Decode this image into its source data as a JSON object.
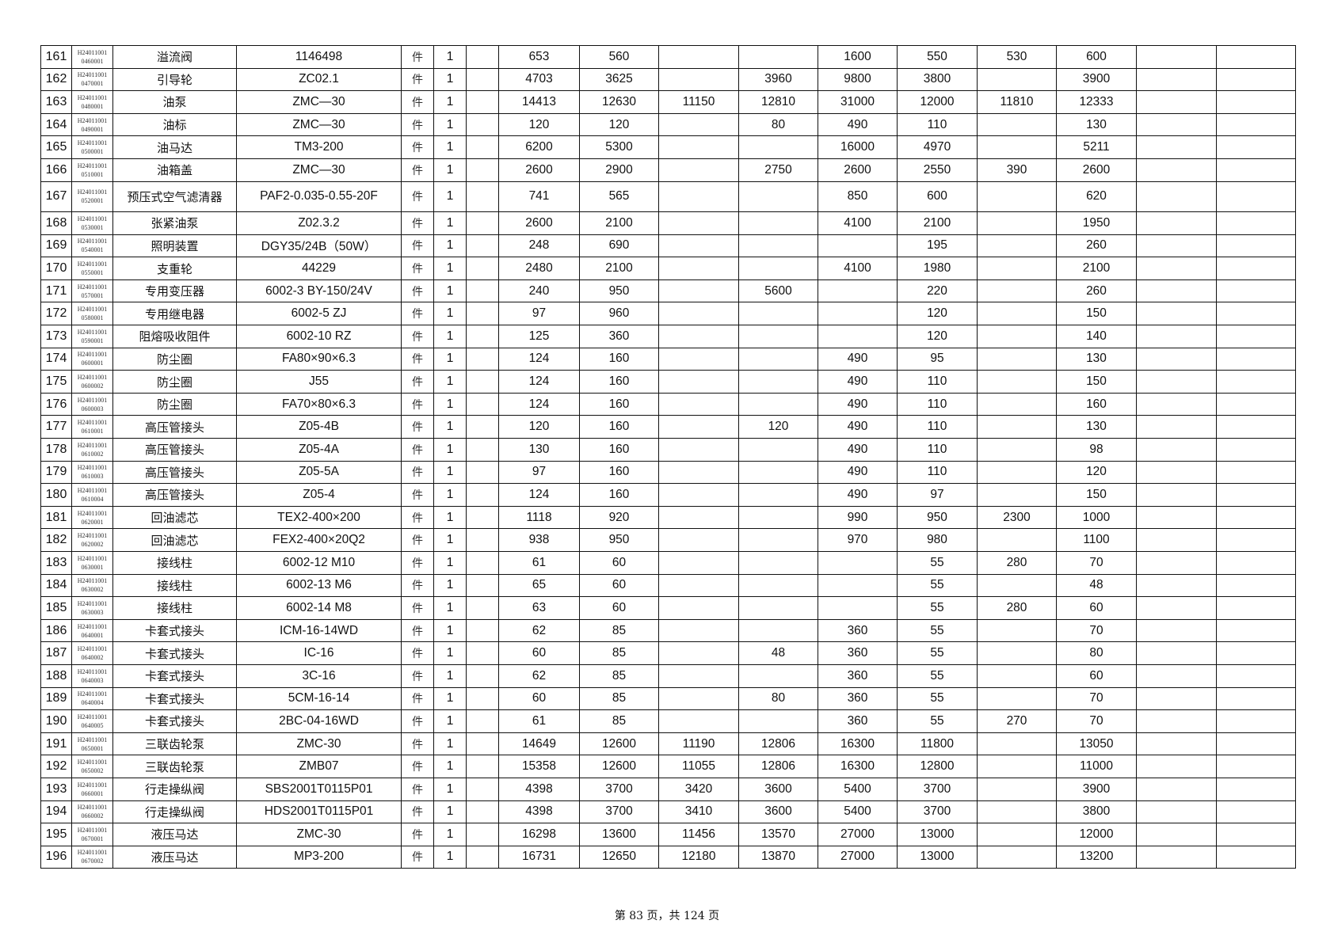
{
  "table": {
    "rows": [
      {
        "no": "161",
        "code": [
          "H24011001",
          "0460001"
        ],
        "name": "溢流阀",
        "model": "1146498",
        "unit": "件",
        "qty": "1",
        "prices": [
          "653",
          "560",
          "",
          "",
          "1600",
          "550",
          "530",
          "600"
        ]
      },
      {
        "no": "162",
        "code": [
          "H24011001",
          "0470001"
        ],
        "name": "引导轮",
        "model": "ZC02.1",
        "unit": "件",
        "qty": "1",
        "prices": [
          "4703",
          "3625",
          "",
          "3960",
          "9800",
          "3800",
          "",
          "3900"
        ]
      },
      {
        "no": "163",
        "code": [
          "H24011001",
          "0480001"
        ],
        "name": "油泵",
        "model": "ZMC—30",
        "unit": "件",
        "qty": "1",
        "prices": [
          "14413",
          "12630",
          "11150",
          "12810",
          "31000",
          "12000",
          "11810",
          "12333"
        ]
      },
      {
        "no": "164",
        "code": [
          "H24011001",
          "0490001"
        ],
        "name": "油标",
        "model": "ZMC—30",
        "unit": "件",
        "qty": "1",
        "prices": [
          "120",
          "120",
          "",
          "80",
          "490",
          "110",
          "",
          "130"
        ]
      },
      {
        "no": "165",
        "code": [
          "H24011001",
          "0500001"
        ],
        "name": "油马达",
        "model": "TM3-200",
        "unit": "件",
        "qty": "1",
        "prices": [
          "6200",
          "5300",
          "",
          "",
          "16000",
          "4970",
          "",
          "5211"
        ]
      },
      {
        "no": "166",
        "code": [
          "H24011001",
          "0510001"
        ],
        "name": "油箱盖",
        "model": "ZMC—30",
        "unit": "件",
        "qty": "1",
        "prices": [
          "2600",
          "2900",
          "",
          "2750",
          "2600",
          "2550",
          "390",
          "2600"
        ]
      },
      {
        "no": "167",
        "code": [
          "H24011001",
          "0520001"
        ],
        "name": "预压式空气滤清器",
        "model": "PAF2-0.035-0.55-20F",
        "unit": "件",
        "qty": "1",
        "prices": [
          "741",
          "565",
          "",
          "",
          "850",
          "600",
          "",
          "620"
        ],
        "tall": true
      },
      {
        "no": "168",
        "code": [
          "H24011001",
          "0530001"
        ],
        "name": "张紧油泵",
        "model": "Z02.3.2",
        "unit": "件",
        "qty": "1",
        "prices": [
          "2600",
          "2100",
          "",
          "",
          "4100",
          "2100",
          "",
          "1950"
        ]
      },
      {
        "no": "169",
        "code": [
          "H24011001",
          "0540001"
        ],
        "name": "照明装置",
        "model": "DGY35/24B（50W）",
        "unit": "件",
        "qty": "1",
        "prices": [
          "248",
          "690",
          "",
          "",
          "",
          "195",
          "",
          "260"
        ]
      },
      {
        "no": "170",
        "code": [
          "H24011001",
          "0550001"
        ],
        "name": "支重轮",
        "model": "44229",
        "unit": "件",
        "qty": "1",
        "prices": [
          "2480",
          "2100",
          "",
          "",
          "4100",
          "1980",
          "",
          "2100"
        ]
      },
      {
        "no": "171",
        "code": [
          "H24011001",
          "0570001"
        ],
        "name": "专用变压器",
        "model": "6002-3 BY-150/24V",
        "unit": "件",
        "qty": "1",
        "prices": [
          "240",
          "950",
          "",
          "5600",
          "",
          "220",
          "",
          "260"
        ]
      },
      {
        "no": "172",
        "code": [
          "H24011001",
          "0580001"
        ],
        "name": "专用继电器",
        "model": "6002-5 ZJ",
        "unit": "件",
        "qty": "1",
        "prices": [
          "97",
          "960",
          "",
          "",
          "",
          "120",
          "",
          "150"
        ]
      },
      {
        "no": "173",
        "code": [
          "H24011001",
          "0590001"
        ],
        "name": "阻熔吸收阻件",
        "model": "6002-10 RZ",
        "unit": "件",
        "qty": "1",
        "prices": [
          "125",
          "360",
          "",
          "",
          "",
          "120",
          "",
          "140"
        ]
      },
      {
        "no": "174",
        "code": [
          "H24011001",
          "0600001"
        ],
        "name": "防尘圈",
        "model": "FA80×90×6.3",
        "unit": "件",
        "qty": "1",
        "prices": [
          "124",
          "160",
          "",
          "",
          "490",
          "95",
          "",
          "130"
        ]
      },
      {
        "no": "175",
        "code": [
          "H24011001",
          "0600002"
        ],
        "name": "防尘圈",
        "model": "J55",
        "unit": "件",
        "qty": "1",
        "prices": [
          "124",
          "160",
          "",
          "",
          "490",
          "110",
          "",
          "150"
        ]
      },
      {
        "no": "176",
        "code": [
          "H24011001",
          "0600003"
        ],
        "name": "防尘圈",
        "model": "FA70×80×6.3",
        "unit": "件",
        "qty": "1",
        "prices": [
          "124",
          "160",
          "",
          "",
          "490",
          "110",
          "",
          "160"
        ]
      },
      {
        "no": "177",
        "code": [
          "H24011001",
          "0610001"
        ],
        "name": "高压管接头",
        "model": "Z05-4B",
        "unit": "件",
        "qty": "1",
        "prices": [
          "120",
          "160",
          "",
          "120",
          "490",
          "110",
          "",
          "130"
        ]
      },
      {
        "no": "178",
        "code": [
          "H24011001",
          "0610002"
        ],
        "name": "高压管接头",
        "model": "Z05-4A",
        "unit": "件",
        "qty": "1",
        "prices": [
          "130",
          "160",
          "",
          "",
          "490",
          "110",
          "",
          "98"
        ]
      },
      {
        "no": "179",
        "code": [
          "H24011001",
          "0610003"
        ],
        "name": "高压管接头",
        "model": "Z05-5A",
        "unit": "件",
        "qty": "1",
        "prices": [
          "97",
          "160",
          "",
          "",
          "490",
          "110",
          "",
          "120"
        ]
      },
      {
        "no": "180",
        "code": [
          "H24011001",
          "0610004"
        ],
        "name": "高压管接头",
        "model": "Z05-4",
        "unit": "件",
        "qty": "1",
        "prices": [
          "124",
          "160",
          "",
          "",
          "490",
          "97",
          "",
          "150"
        ]
      },
      {
        "no": "181",
        "code": [
          "H24011001",
          "0620001"
        ],
        "name": "回油滤芯",
        "model": "TEX2-400×200",
        "unit": "件",
        "qty": "1",
        "prices": [
          "1118",
          "920",
          "",
          "",
          "990",
          "950",
          "2300",
          "1000"
        ]
      },
      {
        "no": "182",
        "code": [
          "H24011001",
          "0620002"
        ],
        "name": "回油滤芯",
        "model": "FEX2-400×20Q2",
        "unit": "件",
        "qty": "1",
        "prices": [
          "938",
          "950",
          "",
          "",
          "970",
          "980",
          "",
          "1100"
        ]
      },
      {
        "no": "183",
        "code": [
          "H24011001",
          "0630001"
        ],
        "name": "接线柱",
        "model": "6002-12 M10",
        "unit": "件",
        "qty": "1",
        "prices": [
          "61",
          "60",
          "",
          "",
          "",
          "55",
          "280",
          "70"
        ]
      },
      {
        "no": "184",
        "code": [
          "H24011001",
          "0630002"
        ],
        "name": "接线柱",
        "model": "6002-13 M6",
        "unit": "件",
        "qty": "1",
        "prices": [
          "65",
          "60",
          "",
          "",
          "",
          "55",
          "",
          "48"
        ]
      },
      {
        "no": "185",
        "code": [
          "H24011001",
          "0630003"
        ],
        "name": "接线柱",
        "model": "6002-14 M8",
        "unit": "件",
        "qty": "1",
        "prices": [
          "63",
          "60",
          "",
          "",
          "",
          "55",
          "280",
          "60"
        ]
      },
      {
        "no": "186",
        "code": [
          "H24011001",
          "0640001"
        ],
        "name": "卡套式接头",
        "model": "ICM-16-14WD",
        "unit": "件",
        "qty": "1",
        "prices": [
          "62",
          "85",
          "",
          "",
          "360",
          "55",
          "",
          "70"
        ]
      },
      {
        "no": "187",
        "code": [
          "H24011001",
          "0640002"
        ],
        "name": "卡套式接头",
        "model": "IC-16",
        "unit": "件",
        "qty": "1",
        "prices": [
          "60",
          "85",
          "",
          "48",
          "360",
          "55",
          "",
          "80"
        ]
      },
      {
        "no": "188",
        "code": [
          "H24011001",
          "0640003"
        ],
        "name": "卡套式接头",
        "model": "3C-16",
        "unit": "件",
        "qty": "1",
        "prices": [
          "62",
          "85",
          "",
          "",
          "360",
          "55",
          "",
          "60"
        ]
      },
      {
        "no": "189",
        "code": [
          "H24011001",
          "0640004"
        ],
        "name": "卡套式接头",
        "model": "5CM-16-14",
        "unit": "件",
        "qty": "1",
        "prices": [
          "60",
          "85",
          "",
          "80",
          "360",
          "55",
          "",
          "70"
        ]
      },
      {
        "no": "190",
        "code": [
          "H24011001",
          "0640005"
        ],
        "name": "卡套式接头",
        "model": "2BC-04-16WD",
        "unit": "件",
        "qty": "1",
        "prices": [
          "61",
          "85",
          "",
          "",
          "360",
          "55",
          "270",
          "70"
        ]
      },
      {
        "no": "191",
        "code": [
          "H24011001",
          "0650001"
        ],
        "name": "三联齿轮泵",
        "model": "ZMC-30",
        "unit": "件",
        "qty": "1",
        "prices": [
          "14649",
          "12600",
          "11190",
          "12806",
          "16300",
          "11800",
          "",
          "13050"
        ]
      },
      {
        "no": "192",
        "code": [
          "H24011001",
          "0650002"
        ],
        "name": "三联齿轮泵",
        "model": "ZMB07",
        "unit": "件",
        "qty": "1",
        "prices": [
          "15358",
          "12600",
          "11055",
          "12806",
          "16300",
          "12800",
          "",
          "11000"
        ]
      },
      {
        "no": "193",
        "code": [
          "H24011001",
          "0660001"
        ],
        "name": "行走操纵阀",
        "model": "SBS2001T0115P01",
        "unit": "件",
        "qty": "1",
        "prices": [
          "4398",
          "3700",
          "3420",
          "3600",
          "5400",
          "3700",
          "",
          "3900"
        ]
      },
      {
        "no": "194",
        "code": [
          "H24011001",
          "0660002"
        ],
        "name": "行走操纵阀",
        "model": "HDS2001T0115P01",
        "unit": "件",
        "qty": "1",
        "prices": [
          "4398",
          "3700",
          "3410",
          "3600",
          "5400",
          "3700",
          "",
          "3800"
        ]
      },
      {
        "no": "195",
        "code": [
          "H24011001",
          "0670001"
        ],
        "name": "液压马达",
        "model": "ZMC-30",
        "unit": "件",
        "qty": "1",
        "prices": [
          "16298",
          "13600",
          "11456",
          "13570",
          "27000",
          "13000",
          "",
          "12000"
        ]
      },
      {
        "no": "196",
        "code": [
          "H24011001",
          "0670002"
        ],
        "name": "液压马达",
        "model": "MP3-200",
        "unit": "件",
        "qty": "1",
        "prices": [
          "16731",
          "12650",
          "12180",
          "13870",
          "27000",
          "13000",
          "",
          "13200"
        ]
      }
    ]
  },
  "footer": {
    "page_text": "第 83 页，共 124 页"
  }
}
